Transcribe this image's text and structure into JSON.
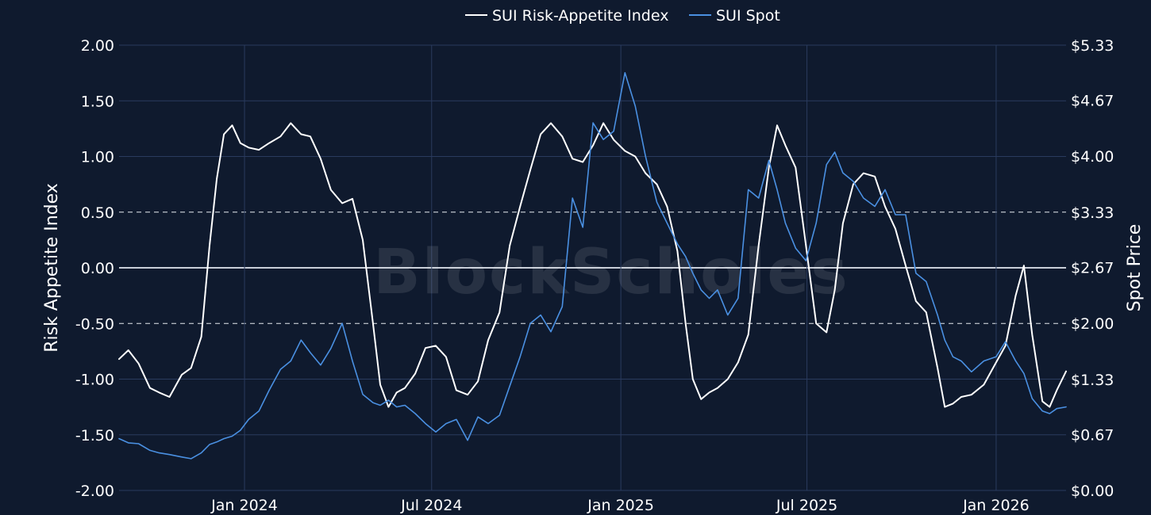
{
  "watermark": "BlockScholes",
  "colors": {
    "background": "#0f1a2e",
    "grid": "#2a3b5e",
    "zero_line": "#c9ced8",
    "index_line": "#ffffff",
    "spot_line": "#4a90e2"
  },
  "chart_data": {
    "type": "line",
    "x_axis": {
      "tick_labels": [
        "Jan 2024",
        "Jul 2024",
        "Jan 2025",
        "Jul 2025",
        "Jan 2026"
      ],
      "tick_dates": [
        "2024-01-01",
        "2024-07-01",
        "2025-01-01",
        "2025-07-01",
        "2026-01-01"
      ],
      "range": [
        "2023-09-01",
        "2026-03-10"
      ]
    },
    "y_left": {
      "label": "Risk Appetite Index",
      "range": [
        -2.0,
        2.0
      ],
      "tick_labels": [
        "-2.00",
        "-1.50",
        "-1.00",
        "-0.50",
        "0.00",
        "0.50",
        "1.00",
        "1.50",
        "2.00"
      ],
      "tick_values": [
        -2.0,
        -1.5,
        -1.0,
        -0.5,
        0.0,
        0.5,
        1.0,
        1.5,
        2.0
      ],
      "dashed_reference_lines": [
        -0.5,
        0.5
      ],
      "solid_reference_line": 0.0
    },
    "y_right": {
      "label": "Spot Price",
      "range": [
        0.0,
        5.33
      ],
      "tick_labels": [
        "$0.00",
        "$0.67",
        "$1.33",
        "$2.00",
        "$2.67",
        "$3.33",
        "$4.00",
        "$4.67",
        "$5.33"
      ],
      "tick_values": [
        0.0,
        0.67,
        1.33,
        2.0,
        2.67,
        3.33,
        4.0,
        4.67,
        5.33
      ]
    },
    "grid": true,
    "legend": {
      "placement": "top-center"
    },
    "series": [
      {
        "name": "SUI Risk-Appetite Index",
        "axis": "left",
        "color": "#ffffff",
        "points": [
          [
            "2023-09-01",
            -0.82
          ],
          [
            "2023-09-10",
            -0.74
          ],
          [
            "2023-09-20",
            -0.86
          ],
          [
            "2023-10-01",
            -1.08
          ],
          [
            "2023-10-10",
            -1.12
          ],
          [
            "2023-10-20",
            -1.16
          ],
          [
            "2023-11-01",
            -0.96
          ],
          [
            "2023-11-10",
            -0.9
          ],
          [
            "2023-11-20",
            -0.62
          ],
          [
            "2023-11-28",
            0.2
          ],
          [
            "2023-12-05",
            0.8
          ],
          [
            "2023-12-12",
            1.2
          ],
          [
            "2023-12-20",
            1.28
          ],
          [
            "2023-12-28",
            1.12
          ],
          [
            "2024-01-05",
            1.08
          ],
          [
            "2024-01-15",
            1.06
          ],
          [
            "2024-01-25",
            1.12
          ],
          [
            "2024-02-05",
            1.18
          ],
          [
            "2024-02-15",
            1.3
          ],
          [
            "2024-02-25",
            1.2
          ],
          [
            "2024-03-05",
            1.18
          ],
          [
            "2024-03-15",
            0.98
          ],
          [
            "2024-03-25",
            0.7
          ],
          [
            "2024-04-05",
            0.58
          ],
          [
            "2024-04-15",
            0.62
          ],
          [
            "2024-04-25",
            0.25
          ],
          [
            "2024-05-05",
            -0.5
          ],
          [
            "2024-05-12",
            -1.05
          ],
          [
            "2024-05-20",
            -1.25
          ],
          [
            "2024-05-28",
            -1.12
          ],
          [
            "2024-06-05",
            -1.08
          ],
          [
            "2024-06-15",
            -0.95
          ],
          [
            "2024-06-25",
            -0.72
          ],
          [
            "2024-07-05",
            -0.7
          ],
          [
            "2024-07-15",
            -0.8
          ],
          [
            "2024-07-25",
            -1.1
          ],
          [
            "2024-08-05",
            -1.14
          ],
          [
            "2024-08-15",
            -1.02
          ],
          [
            "2024-08-25",
            -0.65
          ],
          [
            "2024-09-05",
            -0.4
          ],
          [
            "2024-09-15",
            0.2
          ],
          [
            "2024-09-25",
            0.55
          ],
          [
            "2024-10-05",
            0.88
          ],
          [
            "2024-10-15",
            1.2
          ],
          [
            "2024-10-25",
            1.3
          ],
          [
            "2024-11-05",
            1.18
          ],
          [
            "2024-11-15",
            0.98
          ],
          [
            "2024-11-25",
            0.95
          ],
          [
            "2024-12-05",
            1.1
          ],
          [
            "2024-12-15",
            1.3
          ],
          [
            "2024-12-25",
            1.15
          ],
          [
            "2025-01-05",
            1.05
          ],
          [
            "2025-01-15",
            1.0
          ],
          [
            "2025-01-25",
            0.85
          ],
          [
            "2025-02-05",
            0.75
          ],
          [
            "2025-02-15",
            0.55
          ],
          [
            "2025-02-25",
            0.15
          ],
          [
            "2025-03-05",
            -0.5
          ],
          [
            "2025-03-12",
            -1.0
          ],
          [
            "2025-03-20",
            -1.18
          ],
          [
            "2025-03-28",
            -1.12
          ],
          [
            "2025-04-05",
            -1.08
          ],
          [
            "2025-04-15",
            -1.0
          ],
          [
            "2025-04-25",
            -0.85
          ],
          [
            "2025-05-05",
            -0.6
          ],
          [
            "2025-05-15",
            0.2
          ],
          [
            "2025-05-25",
            0.9
          ],
          [
            "2025-06-02",
            1.28
          ],
          [
            "2025-06-10",
            1.1
          ],
          [
            "2025-06-20",
            0.9
          ],
          [
            "2025-06-30",
            0.2
          ],
          [
            "2025-07-10",
            -0.5
          ],
          [
            "2025-07-20",
            -0.58
          ],
          [
            "2025-07-28",
            -0.2
          ],
          [
            "2025-08-05",
            0.4
          ],
          [
            "2025-08-15",
            0.75
          ],
          [
            "2025-08-25",
            0.85
          ],
          [
            "2025-09-05",
            0.82
          ],
          [
            "2025-09-15",
            0.55
          ],
          [
            "2025-09-25",
            0.35
          ],
          [
            "2025-10-05",
            0.02
          ],
          [
            "2025-10-15",
            -0.3
          ],
          [
            "2025-10-25",
            -0.4
          ],
          [
            "2025-11-05",
            -0.9
          ],
          [
            "2025-11-12",
            -1.25
          ],
          [
            "2025-11-20",
            -1.22
          ],
          [
            "2025-11-28",
            -1.16
          ],
          [
            "2025-12-08",
            -1.14
          ],
          [
            "2025-12-20",
            -1.05
          ],
          [
            "2026-01-01",
            -0.85
          ],
          [
            "2026-01-10",
            -0.7
          ],
          [
            "2026-01-20",
            -0.25
          ],
          [
            "2026-01-28",
            0.02
          ],
          [
            "2026-02-05",
            -0.6
          ],
          [
            "2026-02-15",
            -1.2
          ],
          [
            "2026-02-22",
            -1.25
          ],
          [
            "2026-03-01",
            -1.1
          ],
          [
            "2026-03-10",
            -0.93
          ]
        ]
      },
      {
        "name": "SUI Spot",
        "axis": "right",
        "color": "#4a90e2",
        "points": [
          [
            "2023-09-01",
            0.62
          ],
          [
            "2023-09-10",
            0.57
          ],
          [
            "2023-09-20",
            0.56
          ],
          [
            "2023-10-01",
            0.48
          ],
          [
            "2023-10-10",
            0.45
          ],
          [
            "2023-10-20",
            0.43
          ],
          [
            "2023-11-01",
            0.4
          ],
          [
            "2023-11-10",
            0.38
          ],
          [
            "2023-11-20",
            0.45
          ],
          [
            "2023-11-28",
            0.55
          ],
          [
            "2023-12-05",
            0.58
          ],
          [
            "2023-12-12",
            0.62
          ],
          [
            "2023-12-20",
            0.65
          ],
          [
            "2023-12-28",
            0.72
          ],
          [
            "2024-01-05",
            0.85
          ],
          [
            "2024-01-15",
            0.95
          ],
          [
            "2024-01-25",
            1.2
          ],
          [
            "2024-02-05",
            1.45
          ],
          [
            "2024-02-15",
            1.55
          ],
          [
            "2024-02-25",
            1.8
          ],
          [
            "2024-03-05",
            1.65
          ],
          [
            "2024-03-15",
            1.5
          ],
          [
            "2024-03-25",
            1.7
          ],
          [
            "2024-04-05",
            2.0
          ],
          [
            "2024-04-15",
            1.55
          ],
          [
            "2024-04-25",
            1.15
          ],
          [
            "2024-05-05",
            1.05
          ],
          [
            "2024-05-12",
            1.02
          ],
          [
            "2024-05-20",
            1.08
          ],
          [
            "2024-05-28",
            1.0
          ],
          [
            "2024-06-05",
            1.02
          ],
          [
            "2024-06-15",
            0.92
          ],
          [
            "2024-06-25",
            0.8
          ],
          [
            "2024-07-05",
            0.7
          ],
          [
            "2024-07-15",
            0.8
          ],
          [
            "2024-07-25",
            0.85
          ],
          [
            "2024-08-05",
            0.6
          ],
          [
            "2024-08-15",
            0.88
          ],
          [
            "2024-08-25",
            0.8
          ],
          [
            "2024-09-05",
            0.9
          ],
          [
            "2024-09-15",
            1.25
          ],
          [
            "2024-09-25",
            1.6
          ],
          [
            "2024-10-05",
            2.0
          ],
          [
            "2024-10-15",
            2.1
          ],
          [
            "2024-10-25",
            1.9
          ],
          [
            "2024-11-05",
            2.2
          ],
          [
            "2024-11-15",
            3.5
          ],
          [
            "2024-11-25",
            3.15
          ],
          [
            "2024-12-05",
            4.4
          ],
          [
            "2024-12-15",
            4.2
          ],
          [
            "2024-12-25",
            4.3
          ],
          [
            "2025-01-05",
            5.0
          ],
          [
            "2025-01-15",
            4.6
          ],
          [
            "2025-01-25",
            4.0
          ],
          [
            "2025-02-05",
            3.45
          ],
          [
            "2025-02-15",
            3.2
          ],
          [
            "2025-02-25",
            2.95
          ],
          [
            "2025-03-05",
            2.8
          ],
          [
            "2025-03-12",
            2.6
          ],
          [
            "2025-03-20",
            2.4
          ],
          [
            "2025-03-28",
            2.3
          ],
          [
            "2025-04-05",
            2.4
          ],
          [
            "2025-04-15",
            2.1
          ],
          [
            "2025-04-25",
            2.3
          ],
          [
            "2025-05-05",
            3.6
          ],
          [
            "2025-05-15",
            3.5
          ],
          [
            "2025-05-25",
            3.95
          ],
          [
            "2025-06-02",
            3.6
          ],
          [
            "2025-06-10",
            3.2
          ],
          [
            "2025-06-20",
            2.9
          ],
          [
            "2025-06-30",
            2.75
          ],
          [
            "2025-07-10",
            3.2
          ],
          [
            "2025-07-20",
            3.9
          ],
          [
            "2025-07-28",
            4.05
          ],
          [
            "2025-08-05",
            3.8
          ],
          [
            "2025-08-15",
            3.7
          ],
          [
            "2025-08-25",
            3.5
          ],
          [
            "2025-09-05",
            3.4
          ],
          [
            "2025-09-15",
            3.6
          ],
          [
            "2025-09-25",
            3.3
          ],
          [
            "2025-10-05",
            3.3
          ],
          [
            "2025-10-15",
            2.6
          ],
          [
            "2025-10-25",
            2.5
          ],
          [
            "2025-11-05",
            2.1
          ],
          [
            "2025-11-12",
            1.8
          ],
          [
            "2025-11-20",
            1.6
          ],
          [
            "2025-11-28",
            1.55
          ],
          [
            "2025-12-08",
            1.42
          ],
          [
            "2025-12-20",
            1.55
          ],
          [
            "2026-01-01",
            1.6
          ],
          [
            "2026-01-10",
            1.78
          ],
          [
            "2026-01-20",
            1.55
          ],
          [
            "2026-01-28",
            1.4
          ],
          [
            "2026-02-05",
            1.1
          ],
          [
            "2026-02-15",
            0.95
          ],
          [
            "2026-02-22",
            0.92
          ],
          [
            "2026-03-01",
            0.98
          ],
          [
            "2026-03-10",
            1.0
          ]
        ]
      }
    ]
  }
}
